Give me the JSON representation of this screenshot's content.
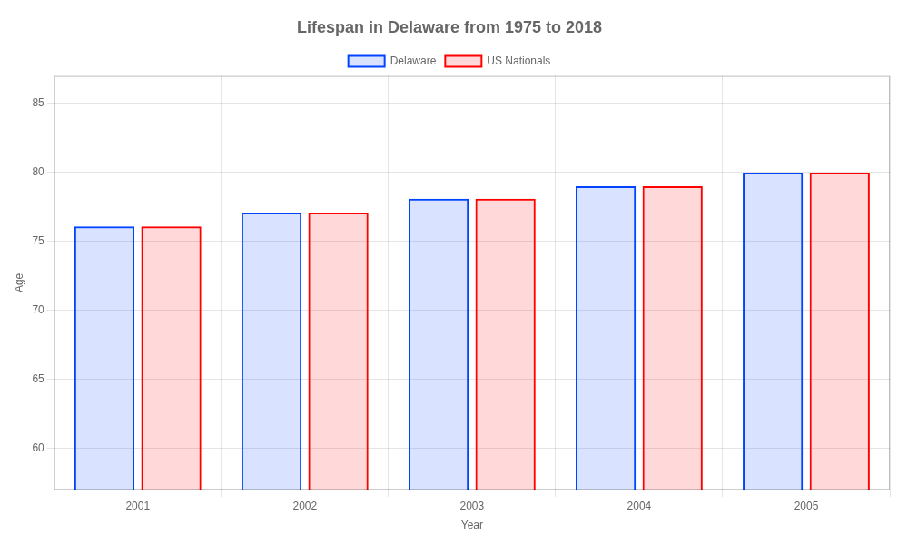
{
  "chart_data": {
    "type": "bar",
    "title": "Lifespan in Delaware from 1975 to 2018",
    "xlabel": "Year",
    "ylabel": "Age",
    "categories": [
      "2001",
      "2002",
      "2003",
      "2004",
      "2005"
    ],
    "series": [
      {
        "name": "Delaware",
        "color": "#0044ff",
        "values": [
          76.1,
          77.1,
          78.1,
          79.0,
          80.0
        ]
      },
      {
        "name": "US Nationals",
        "color": "#ff0000",
        "values": [
          76.1,
          77.1,
          78.1,
          79.0,
          80.0
        ]
      }
    ],
    "ylim": [
      57,
      87
    ],
    "yticks": [
      60,
      65,
      70,
      75,
      80,
      85
    ],
    "grid": true,
    "legend": "top"
  }
}
